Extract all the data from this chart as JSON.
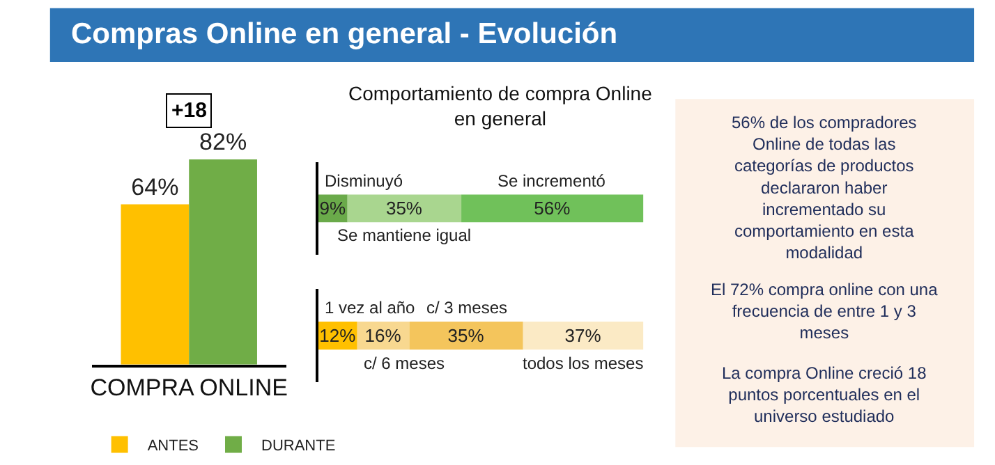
{
  "chart_data": [
    {
      "type": "bar",
      "title": "Compras Online en general - Evolución",
      "categories": [
        "COMPRA ONLINE"
      ],
      "tick_labels": "x",
      "legend": "bottom",
      "annotations": [
        "+18"
      ],
      "series": [
        {
          "name": "ANTES",
          "color": "#ffc000",
          "values": [
            64
          ],
          "value_labels": [
            "64%"
          ]
        },
        {
          "name": "DURANTE",
          "color": "#70ad47",
          "values": [
            82
          ],
          "value_labels": [
            "82%"
          ]
        }
      ]
    },
    {
      "type": "bar",
      "title": "Comportamiento de compra Online en general",
      "orientation": "horizontal",
      "stacked": true,
      "categories": [
        null
      ],
      "xlim": [
        0,
        100
      ],
      "tick_labels": false,
      "series": [
        {
          "name": "Disminuyó",
          "color": "#6aaa4a",
          "values": [
            9
          ],
          "value_labels": [
            "9%"
          ]
        },
        {
          "name": "Se mantiene igual",
          "color": "#a9d68f",
          "values": [
            35
          ],
          "value_labels": [
            "35%"
          ]
        },
        {
          "name": "Se incrementó",
          "color": "#70c15a",
          "values": [
            56
          ],
          "value_labels": [
            "56%"
          ]
        }
      ]
    },
    {
      "type": "bar",
      "orientation": "horizontal",
      "stacked": true,
      "categories": [
        null
      ],
      "xlim": [
        0,
        100
      ],
      "tick_labels": false,
      "series": [
        {
          "name": "1 vez al año",
          "color": "#ffc000",
          "values": [
            12
          ],
          "value_labels": [
            "12%"
          ]
        },
        {
          "name": "c/ 6 meses",
          "color": "#f8d890",
          "values": [
            16
          ],
          "value_labels": [
            "16%"
          ]
        },
        {
          "name": "c/ 3 meses",
          "color": "#f4c55c",
          "values": [
            35
          ],
          "value_labels": [
            "35%"
          ]
        },
        {
          "name": "todos los meses",
          "color": "#fbeac5",
          "values": [
            37
          ],
          "value_labels": [
            "37%"
          ]
        }
      ]
    },
    {
      "type": "other",
      "annotations": [
        "56% de los compradores Online de todas las categorías de productos declararon haber incrementado su comportamiento en esta modalidad",
        "El 72% compra online con una frecuencia de entre 1 y 3 meses",
        "La compra Online creció 18 puntos porcentuales en el universo estudiado"
      ]
    }
  ]
}
